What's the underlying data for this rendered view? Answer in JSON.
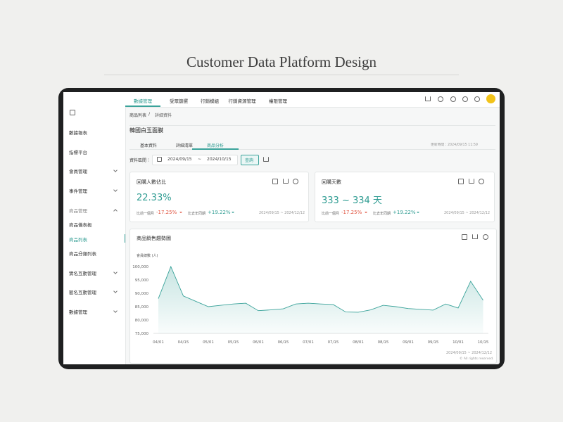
{
  "header": {
    "title": "Customer Data Platform Design"
  },
  "nav": [
    "數據管理",
    "受眾篩選",
    "行銷模組",
    "行銷資源管理",
    "權限管理"
  ],
  "sidebar": [
    "數據報表",
    "指標平台",
    "會員管理",
    "事件管理",
    "商品管理",
    "商品儀表板",
    "商品列表",
    "商品分類列表",
    "實名互動管理",
    "匿名互動管理",
    "數據管理"
  ],
  "breadcrumb": {
    "items": [
      "商品列表",
      "詳細資料"
    ],
    "separator": "/"
  },
  "product": {
    "name": "韓國白玉面膜",
    "updated": "更新時間：2024/09/15 11:59"
  },
  "tabs": [
    "基本資料",
    "詳細清單",
    "商品分析"
  ],
  "filter": {
    "label": "資料區間：",
    "start": "2024/09/15",
    "separator": "~",
    "end": "2024/10/15",
    "button": "查詢"
  },
  "cards": [
    {
      "title": "回購人數佔比",
      "value": "22.33%",
      "compare": [
        {
          "label": "比前一個月",
          "value": "-17.25%"
        },
        {
          "label": "比去年同期",
          "value": "+19.22%"
        }
      ],
      "range": "2024/09/15 ~ 2024/12/12"
    },
    {
      "title": "回購天數",
      "value": "333 ~ 334 天",
      "compare": [
        {
          "label": "比前一個月",
          "value": "-17.25%"
        },
        {
          "label": "比去年同期",
          "value": "+19.22%"
        }
      ],
      "range": "2024/09/15 ~ 2024/12/12"
    }
  ],
  "chart_data": {
    "type": "line",
    "title": "商品銷售趨勢圖",
    "y_label": "會員總數 (人)",
    "categories": [
      "04/01",
      null,
      "04/15",
      null,
      "05/01",
      null,
      "05/15",
      null,
      "06/01",
      null,
      "06/15",
      null,
      "07/01",
      null,
      "07/15",
      null,
      "08/01",
      null,
      "08/15",
      null,
      "09/01",
      null,
      "09/15",
      null,
      "10/01",
      null,
      "10/15"
    ],
    "values": [
      88000,
      100000,
      89000,
      87000,
      85000,
      85500,
      86000,
      86300,
      83500,
      83800,
      84200,
      86000,
      86300,
      86000,
      85800,
      83000,
      82900,
      83800,
      85500,
      85000,
      84300,
      84000,
      83700,
      86000,
      84500,
      94500,
      87400
    ],
    "color": "#3aa39a",
    "ylim": [
      75000,
      100000
    ],
    "yticks": [
      {
        "value": 75000,
        "label": "75,000"
      },
      {
        "value": 80000,
        "label": "80,000"
      },
      {
        "value": 85000,
        "label": "85,000"
      },
      {
        "value": 90000,
        "label": "90,000"
      },
      {
        "value": 95000,
        "label": "95,000"
      },
      {
        "value": 100000,
        "label": "100,000"
      }
    ],
    "grid": false,
    "date_range": "2024/09/15 ~ 2024/12/12"
  },
  "footer": "© All rights reserved."
}
